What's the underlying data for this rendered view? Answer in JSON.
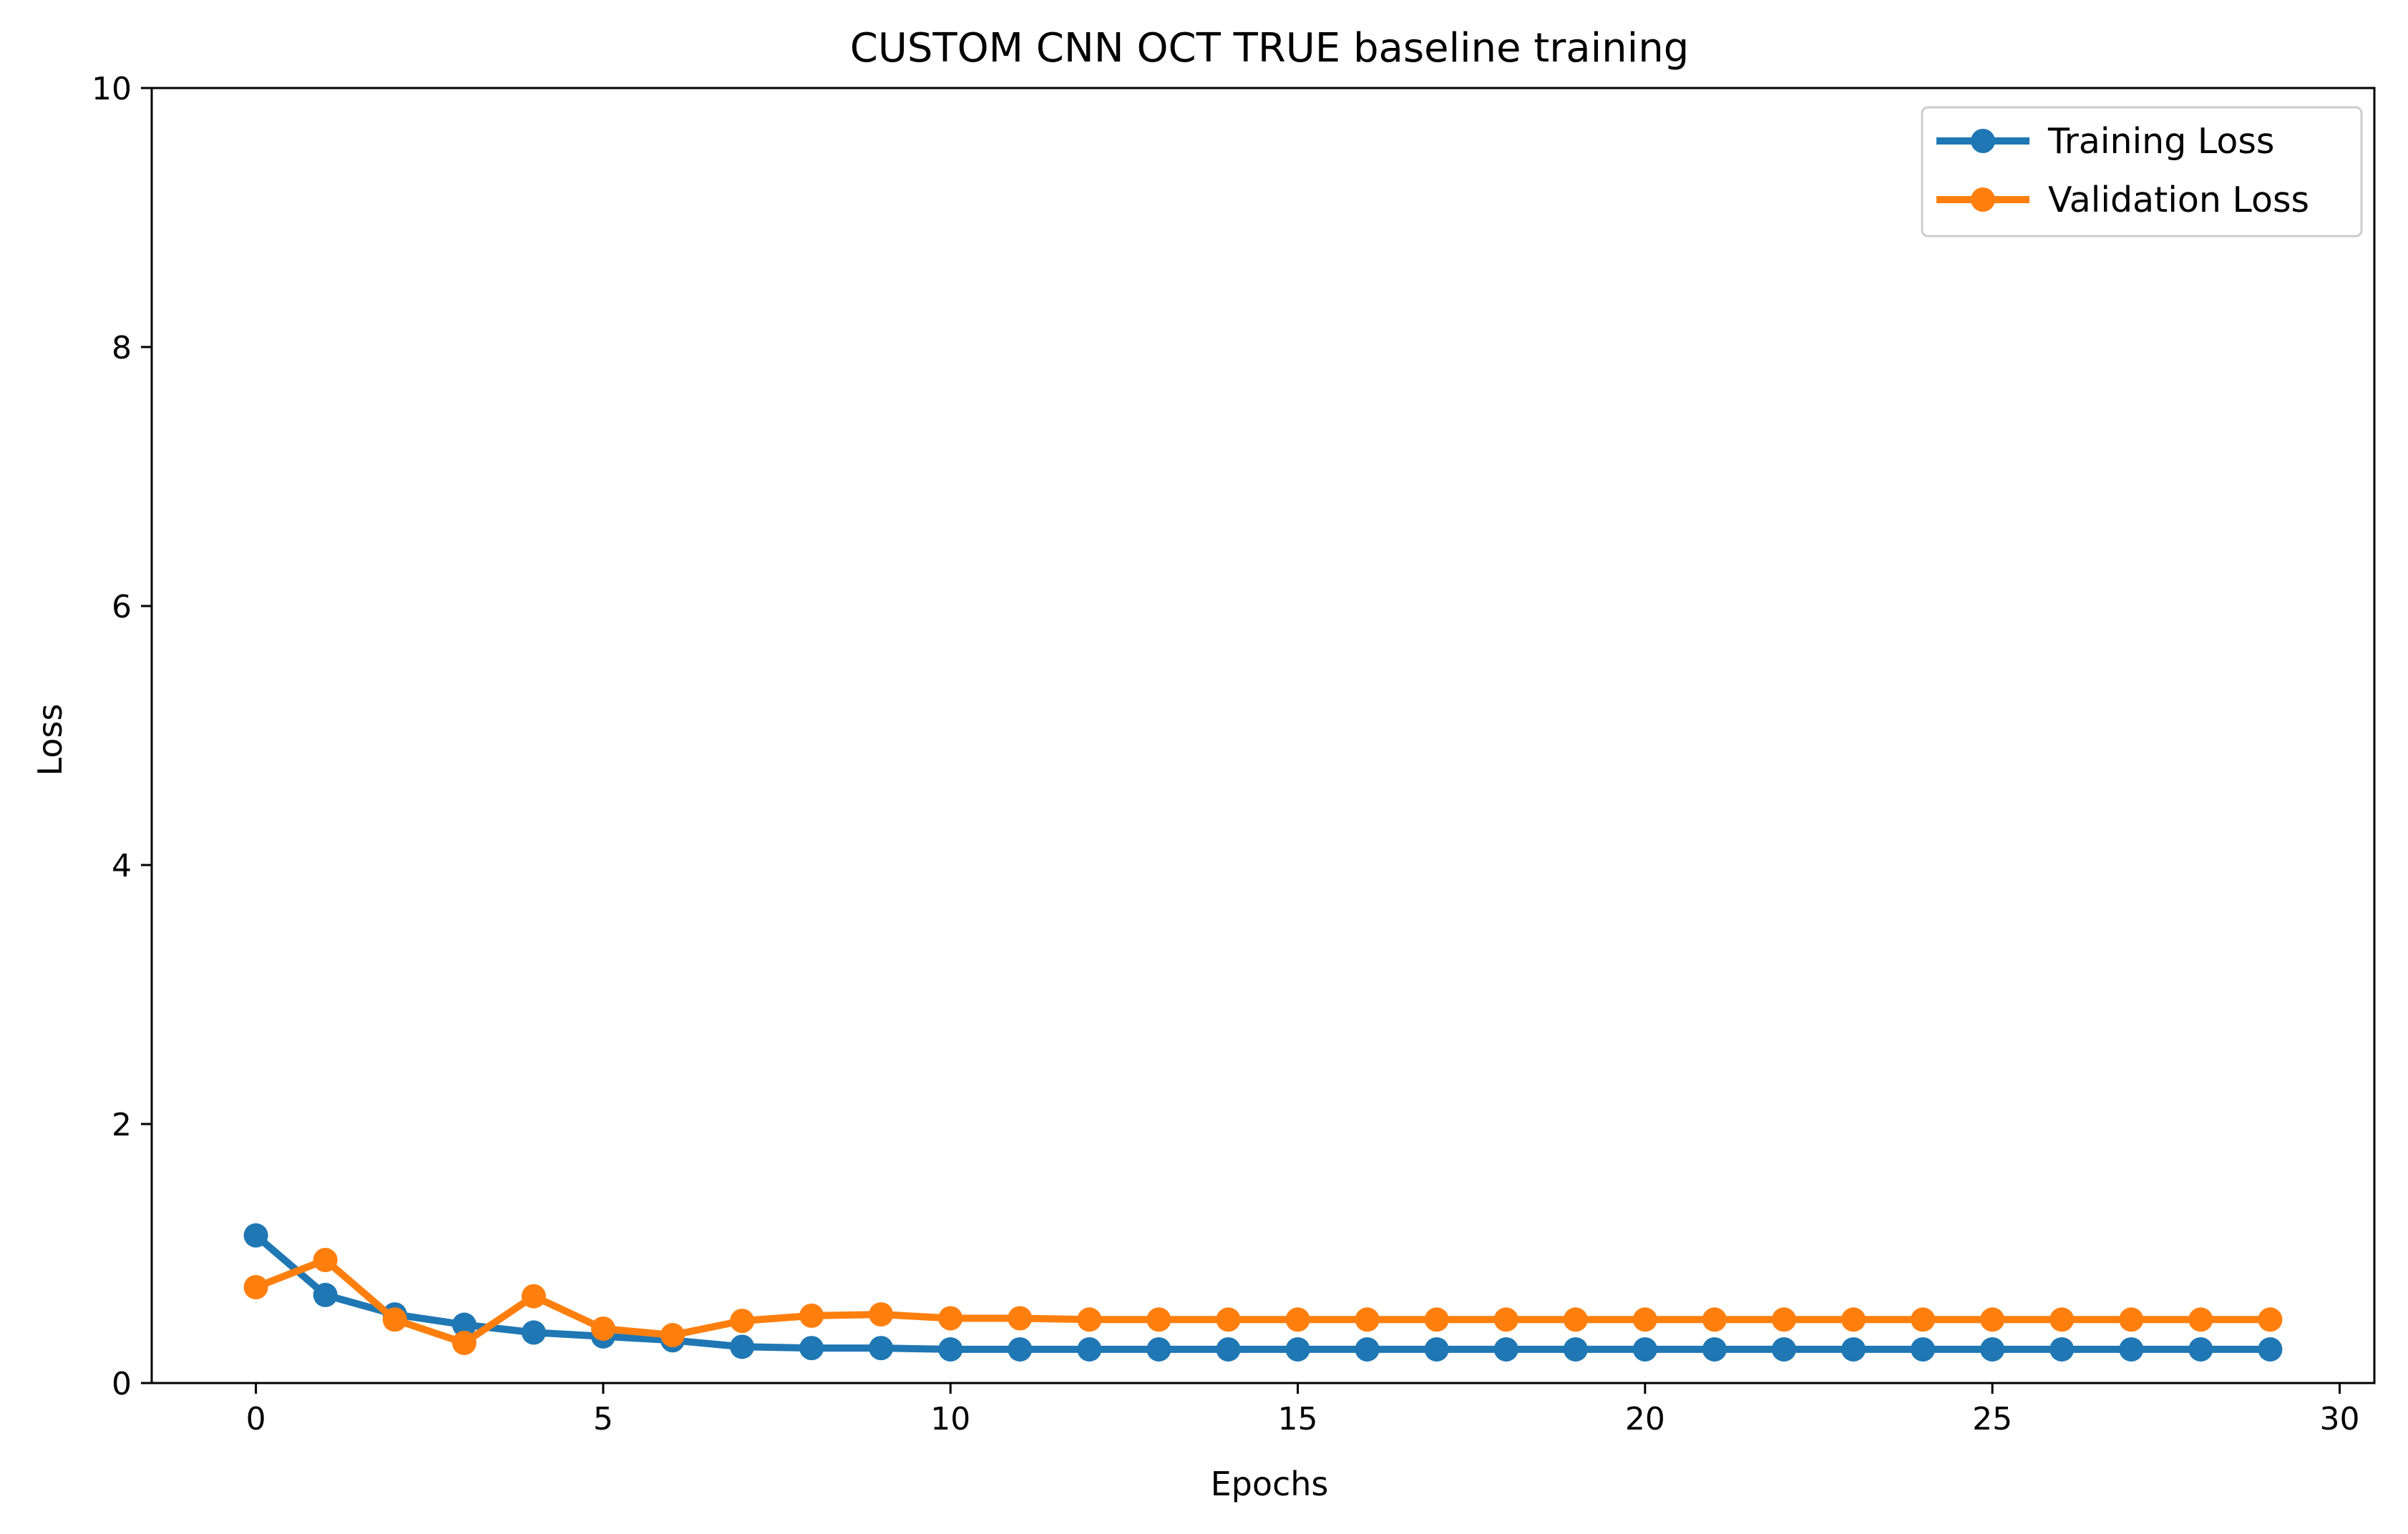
{
  "chart_data": {
    "type": "line",
    "title": "CUSTOM CNN OCT TRUE baseline training",
    "xlabel": "Epochs",
    "ylabel": "Loss",
    "xlim": [
      -1.5,
      30.5
    ],
    "ylim": [
      0,
      10
    ],
    "xticks": [
      0,
      5,
      10,
      15,
      20,
      25,
      30
    ],
    "yticks": [
      0,
      2,
      4,
      6,
      8,
      10
    ],
    "grid": false,
    "legend_position": "top-right",
    "x": [
      0,
      1,
      2,
      3,
      4,
      5,
      6,
      7,
      8,
      9,
      10,
      11,
      12,
      13,
      14,
      15,
      16,
      17,
      18,
      19,
      20,
      21,
      22,
      23,
      24,
      25,
      26,
      27,
      28,
      29
    ],
    "series": [
      {
        "name": "Training Loss",
        "color": "#1f77b4",
        "marker": "circle",
        "values": [
          1.14,
          0.68,
          0.53,
          0.45,
          0.39,
          0.36,
          0.33,
          0.28,
          0.27,
          0.27,
          0.26,
          0.26,
          0.26,
          0.26,
          0.26,
          0.26,
          0.26,
          0.26,
          0.26,
          0.26,
          0.26,
          0.26,
          0.26,
          0.26,
          0.26,
          0.26,
          0.26,
          0.26,
          0.26,
          0.26
        ]
      },
      {
        "name": "Validation Loss",
        "color": "#ff7f0e",
        "marker": "circle",
        "values": [
          0.74,
          0.95,
          0.49,
          0.31,
          0.67,
          0.42,
          0.37,
          0.48,
          0.52,
          0.53,
          0.5,
          0.5,
          0.49,
          0.49,
          0.49,
          0.49,
          0.49,
          0.49,
          0.49,
          0.49,
          0.49,
          0.49,
          0.49,
          0.49,
          0.49,
          0.49,
          0.49,
          0.49,
          0.49,
          0.49
        ]
      }
    ]
  }
}
